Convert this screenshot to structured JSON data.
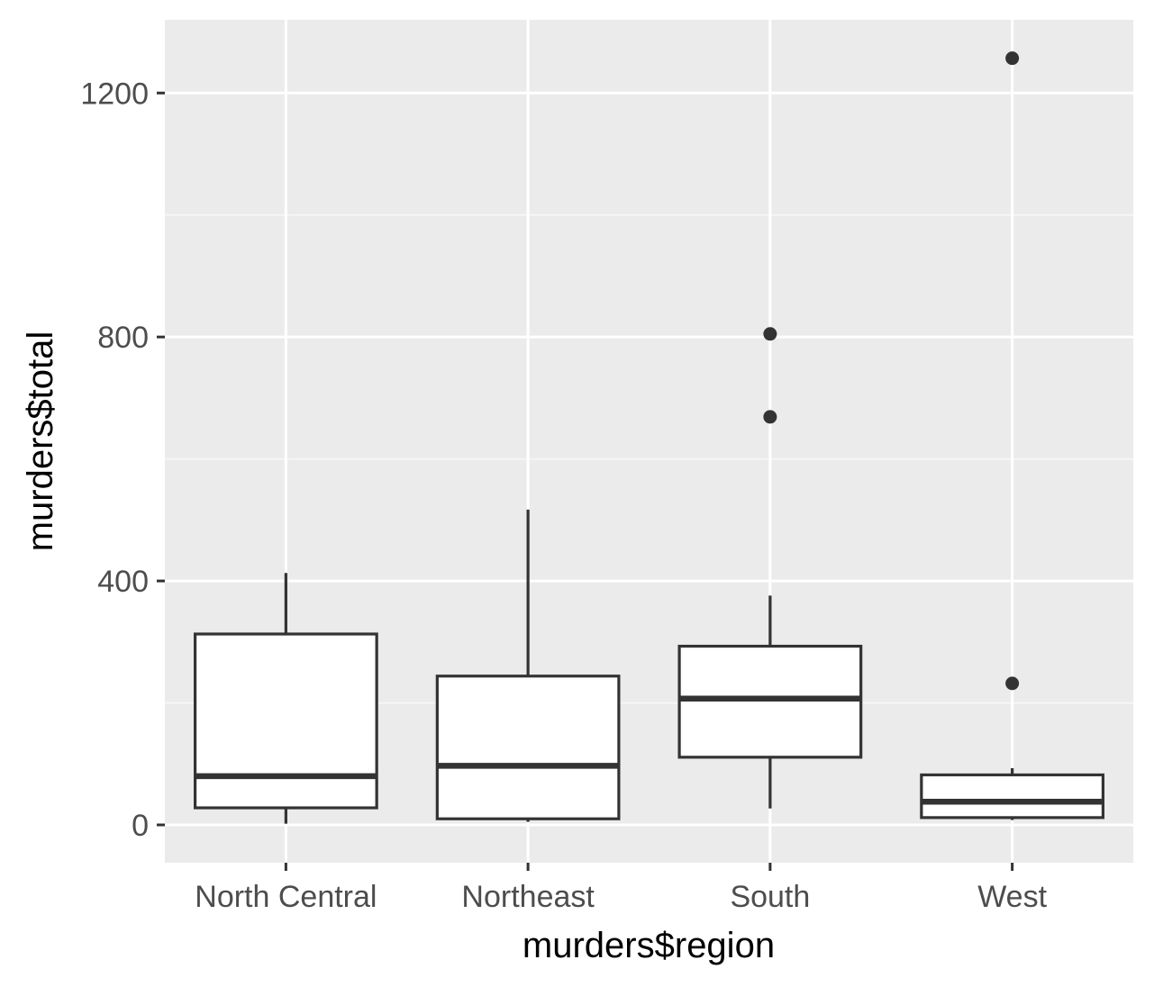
{
  "chart_data": {
    "type": "boxplot",
    "xlabel": "murders$region",
    "ylabel": "murders$total",
    "categories": [
      "North Central",
      "Northeast",
      "South",
      "West"
    ],
    "boxes": [
      {
        "category": "North Central",
        "lower_whisker": 2,
        "q1": 28,
        "median": 80,
        "q3": 313,
        "upper_whisker": 413,
        "outliers": []
      },
      {
        "category": "Northeast",
        "lower_whisker": 5,
        "q1": 10,
        "median": 97,
        "q3": 244,
        "upper_whisker": 517,
        "outliers": []
      },
      {
        "category": "South",
        "lower_whisker": 27,
        "q1": 111,
        "median": 207,
        "q3": 293,
        "upper_whisker": 376,
        "outliers": [
          669,
          805
        ]
      },
      {
        "category": "West",
        "lower_whisker": 8,
        "q1": 12,
        "median": 38,
        "q3": 82,
        "upper_whisker": 93,
        "outliers": [
          232,
          1257
        ]
      }
    ],
    "yticks": [
      0,
      400,
      800,
      1200
    ],
    "yticklabels": [
      "0",
      "400",
      "800",
      "1200"
    ],
    "ylim": [
      -62,
      1320
    ],
    "grid": true,
    "colors": {
      "panel": "#ebebeb",
      "grid_major": "#ffffff",
      "grid_minor": "#f7f7f7",
      "box_fill": "#ffffff",
      "box_line": "#333333",
      "tick": "#333333",
      "tick_label": "#4d4d4d"
    }
  }
}
